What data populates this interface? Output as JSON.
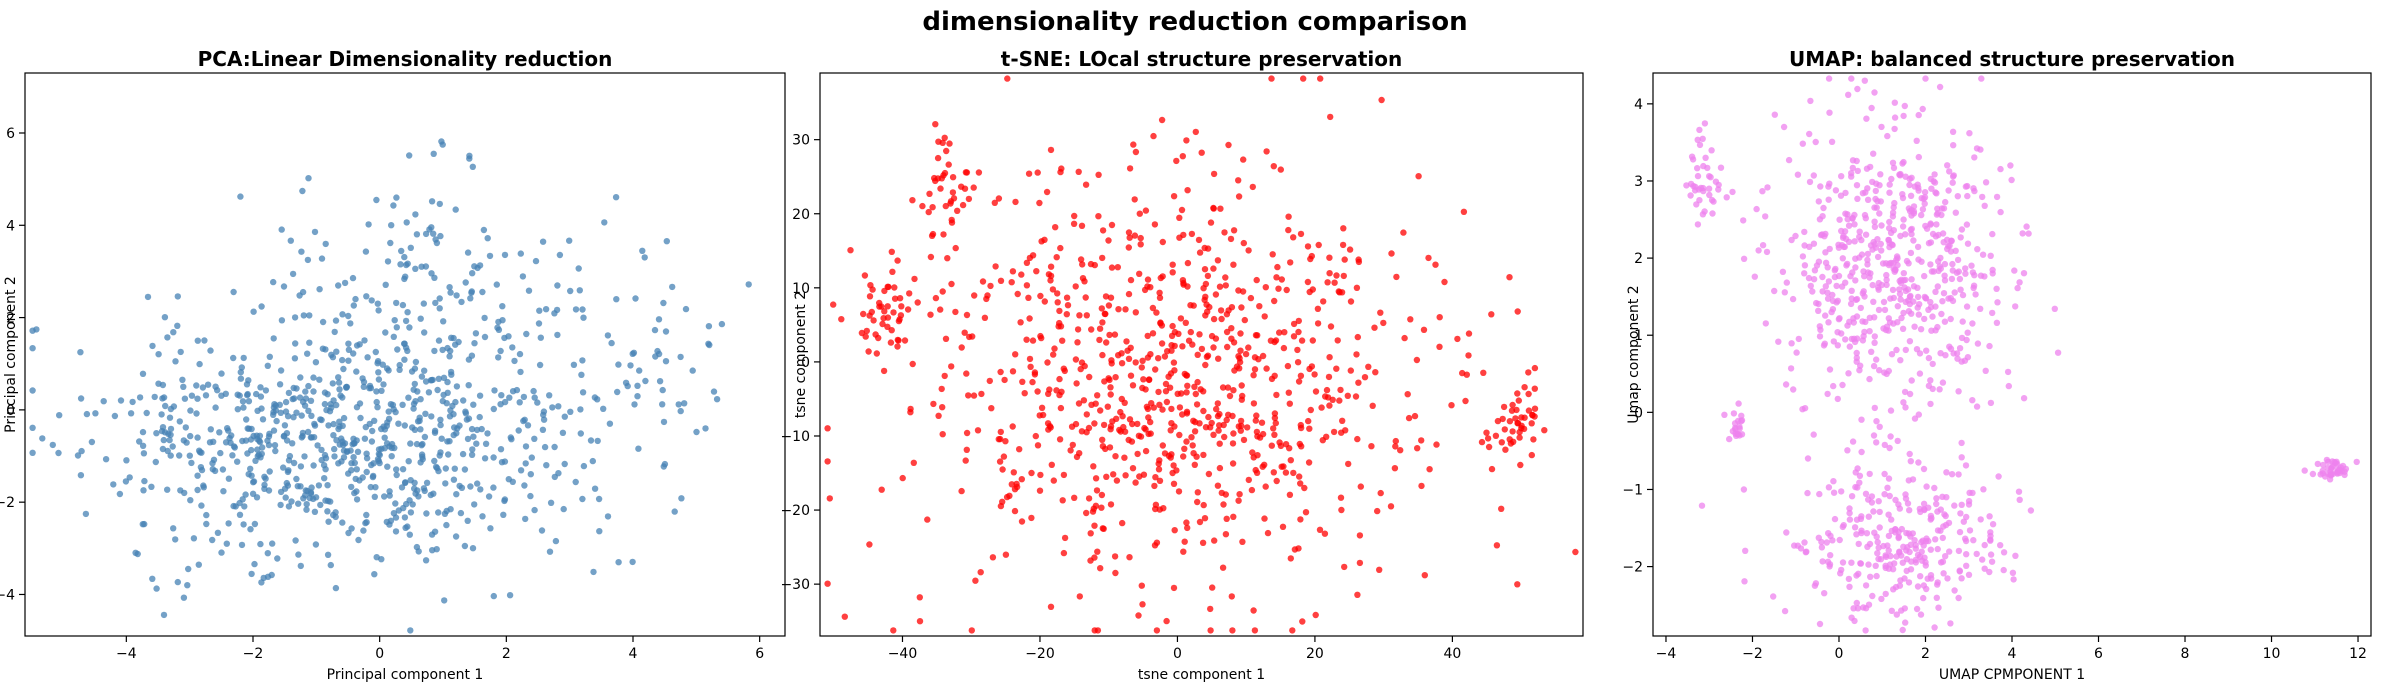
{
  "figure": {
    "title": "dimensionality reduction comparison"
  },
  "chart_data": [
    {
      "type": "scatter",
      "title": "PCA:Linear Dimensionality reduction",
      "xlabel": "Principal component 1",
      "ylabel": "Principal component 2",
      "xlim": [
        -5.6,
        6.4
      ],
      "ylim": [
        -4.9,
        7.3
      ],
      "xticks": [
        -4,
        -2,
        0,
        2,
        4,
        6
      ],
      "yticks": [
        -4,
        -2,
        0,
        2,
        4,
        6
      ],
      "color": "#4682b4",
      "grid": false,
      "seed": 11,
      "point_count": 1000,
      "clusters": [
        {
          "cx": -0.6,
          "cy": -0.6,
          "sx": 2.0,
          "sy": 1.35,
          "n": 820
        },
        {
          "cx": 0.6,
          "cy": 2.9,
          "sx": 1.3,
          "sy": 1.2,
          "n": 140
        },
        {
          "cx": 4.4,
          "cy": 1.3,
          "sx": 0.7,
          "sy": 1.1,
          "n": 40
        }
      ]
    },
    {
      "type": "scatter",
      "title": "t-SNE: LOcal structure preservation",
      "xlabel": "tsne component 1",
      "ylabel": "tsne component 2",
      "xlim": [
        -52,
        59
      ],
      "ylim": [
        -37,
        39
      ],
      "xticks": [
        -40,
        -20,
        0,
        20,
        40
      ],
      "yticks": [
        -30,
        -20,
        -10,
        0,
        10,
        20,
        30
      ],
      "color": "#ff0000",
      "grid": false,
      "seed": 23,
      "point_count": 1000,
      "clusters": [
        {
          "cx": -2,
          "cy": -3,
          "sx": 18,
          "sy": 14,
          "n": 870
        },
        {
          "cx": 50,
          "cy": -8,
          "sx": 2.2,
          "sy": 2.8,
          "n": 45
        },
        {
          "cx": -34,
          "cy": 24,
          "sx": 2.5,
          "sy": 4,
          "n": 40
        },
        {
          "cx": -43,
          "cy": 6,
          "sx": 2.5,
          "sy": 4,
          "n": 45
        }
      ]
    },
    {
      "type": "scatter",
      "title": "UMAP: balanced structure preservation",
      "xlabel": "UMAP CPMPONENT 1",
      "ylabel": "Umap component 2",
      "xlim": [
        -4.3,
        12.3
      ],
      "ylim": [
        -2.9,
        4.4
      ],
      "xticks": [
        -4,
        -2,
        0,
        2,
        4,
        6,
        8,
        10,
        12
      ],
      "yticks": [
        -2,
        -1,
        0,
        1,
        2,
        3,
        4
      ],
      "color": "#ee82ee",
      "grid": false,
      "seed": 37,
      "point_count": 1000,
      "clusters": [
        {
          "cx": 1.3,
          "cy": 1.9,
          "sx": 1.3,
          "sy": 0.95,
          "n": 600
        },
        {
          "cx": 1.2,
          "cy": -1.6,
          "sx": 1.3,
          "sy": 0.55,
          "n": 300
        },
        {
          "cx": -3.1,
          "cy": 3.0,
          "sx": 0.22,
          "sy": 0.28,
          "n": 40
        },
        {
          "cx": -2.4,
          "cy": -0.2,
          "sx": 0.12,
          "sy": 0.12,
          "n": 20
        },
        {
          "cx": 11.4,
          "cy": -0.75,
          "sx": 0.22,
          "sy": 0.07,
          "n": 40
        }
      ]
    }
  ]
}
